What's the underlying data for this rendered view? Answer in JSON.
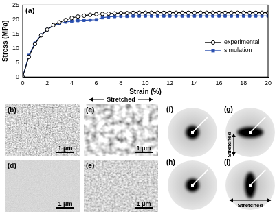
{
  "chart_data": {
    "type": "line",
    "title": "(a)",
    "x_label": "Strain (%)",
    "y_label": "Stress (MPa)",
    "x": [
      0,
      0.5,
      1,
      1.5,
      2,
      2.5,
      3,
      3.5,
      4,
      4.5,
      5,
      5.5,
      6,
      6.5,
      7,
      7.5,
      8,
      8.5,
      9,
      9.5,
      10,
      10.5,
      11,
      11.5,
      12,
      12.5,
      13,
      13.5,
      14,
      14.5,
      15,
      15.5,
      16,
      16.5,
      17,
      17.5,
      18,
      18.5,
      19,
      19.5,
      20
    ],
    "series": [
      {
        "name": "experimental",
        "color": "#000000",
        "marker": "circle",
        "line_style": "solid",
        "values": [
          0,
          7,
          11.5,
          14.5,
          16.5,
          18,
          19,
          19.8,
          20.5,
          21,
          21.3,
          21.6,
          21.8,
          21.9,
          22,
          22.1,
          22.2,
          22.2,
          22.3,
          22.3,
          22.3,
          22.3,
          22.3,
          22.3,
          22.3,
          22.3,
          22.3,
          22.3,
          22.3,
          22.3,
          22.3,
          22.3,
          22.3,
          22.3,
          22.3,
          22.3,
          22.3,
          22.3,
          22.3,
          22.3,
          22.3
        ]
      },
      {
        "name": "simulation",
        "color": "#2b50b0",
        "marker": "square",
        "line_style": "solid",
        "values": [
          0,
          7.5,
          11.8,
          14.6,
          16.5,
          17.8,
          18.6,
          19.1,
          19.4,
          19.6,
          19.7,
          19.8,
          19.9,
          20.6,
          20.9,
          21,
          21.1,
          21.1,
          21.2,
          21.2,
          21.2,
          21.2,
          21.2,
          21.2,
          21.2,
          21.2,
          21.2,
          21.2,
          21.2,
          21.2,
          21.2,
          21.2,
          21.2,
          21.2,
          21.2,
          21.2,
          21.2,
          21.2,
          21.2,
          21.2,
          21.2
        ]
      }
    ],
    "xlim": [
      0,
      20
    ],
    "xticks": [
      0,
      2,
      4,
      6,
      8,
      10,
      12,
      14,
      16,
      18,
      20
    ],
    "ylim": [
      0,
      25
    ],
    "yticks": [
      0,
      5,
      10,
      15,
      20,
      25
    ],
    "grid": false,
    "legend": "right"
  },
  "sem_images": [
    {
      "label": "(b)",
      "scale_bar": "1 μm"
    },
    {
      "label": "(c)",
      "scale_bar": "1 μm",
      "arrow_label": "Stretched"
    },
    {
      "label": "(d)",
      "scale_bar": "1 μm"
    },
    {
      "label": "(e)",
      "scale_bar": "1 μm"
    }
  ],
  "patterns": [
    {
      "label": "(f)"
    },
    {
      "label": "(g)",
      "arrow_label": "Stretched"
    },
    {
      "label": "(h)"
    },
    {
      "label": "(i)",
      "arrow_label": "Stretched"
    }
  ]
}
